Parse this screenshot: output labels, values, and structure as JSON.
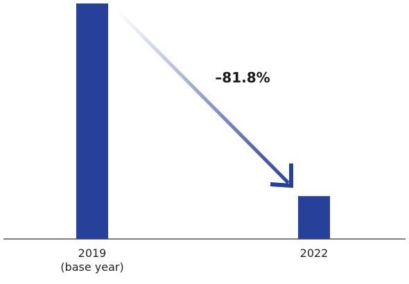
{
  "chart_data": {
    "type": "bar",
    "categories": [
      "2019\n(base year)",
      "2022"
    ],
    "values": [
      100,
      18.2
    ],
    "color": "#27409a",
    "annotation": "–81.8%"
  }
}
